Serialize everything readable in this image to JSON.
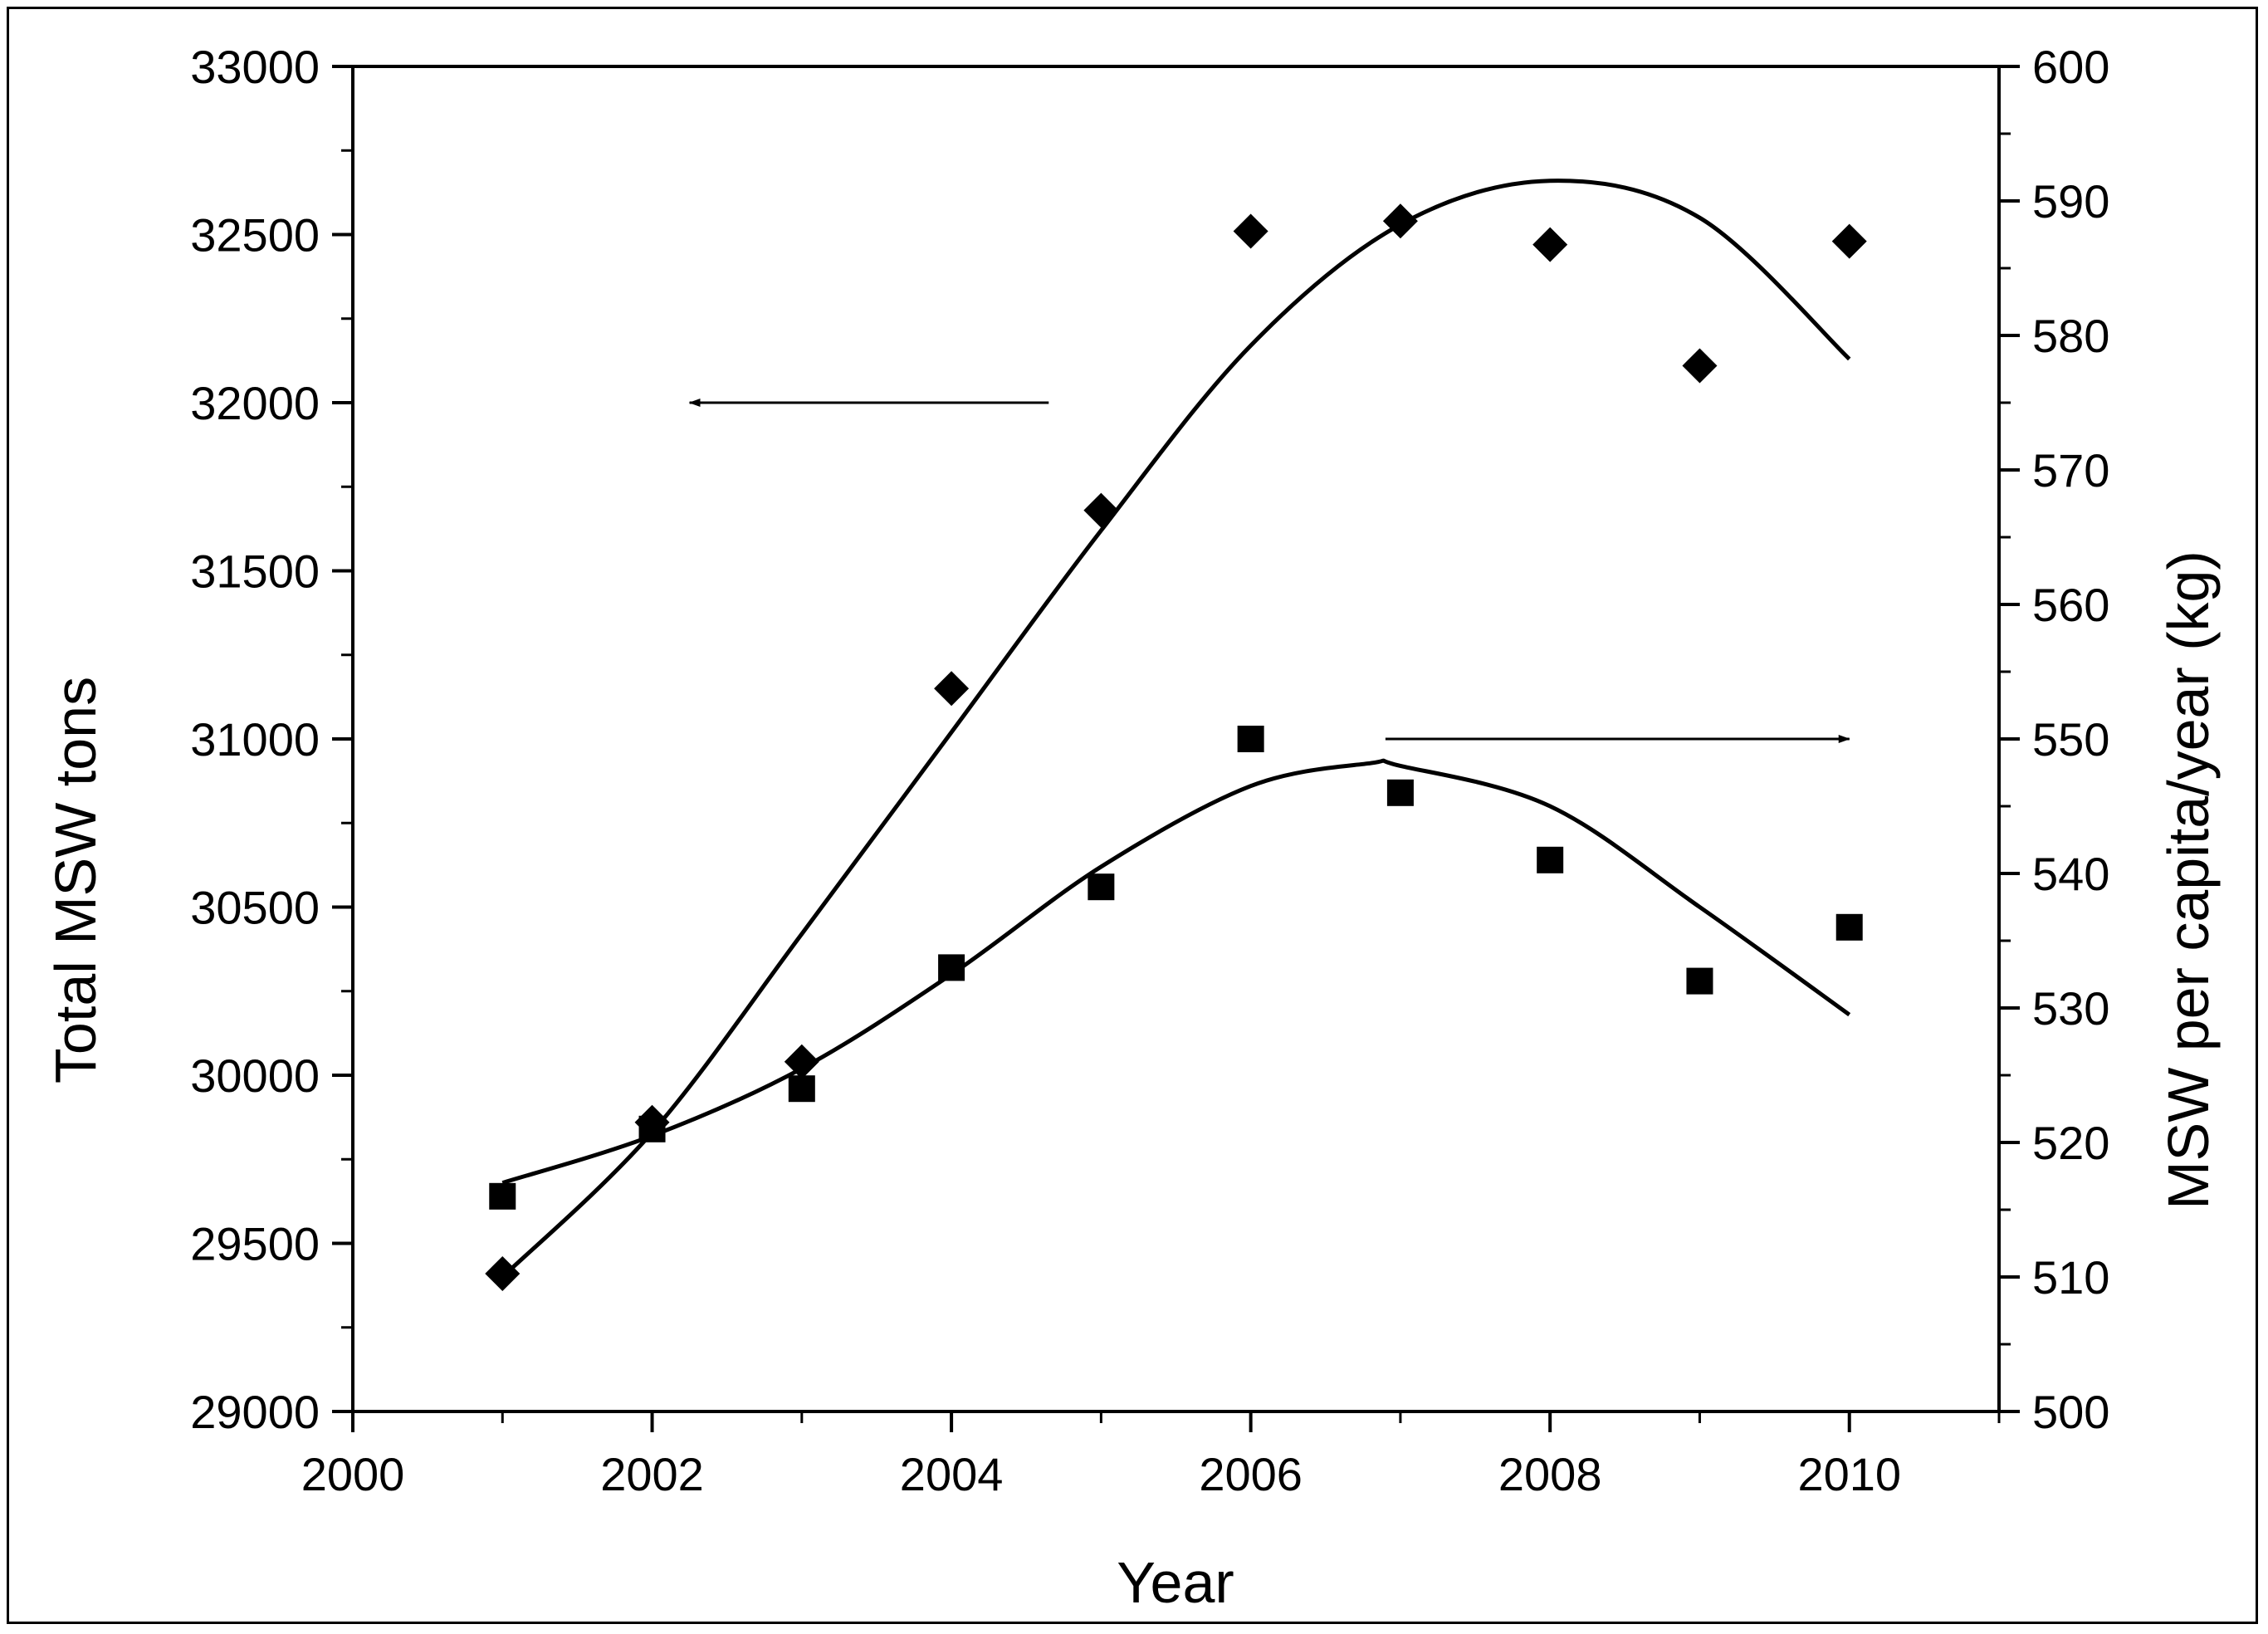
{
  "chart_data": {
    "type": "scatter",
    "x_axis": {
      "label": "Year",
      "range": [
        2000,
        2011
      ],
      "ticks": [
        2000,
        2002,
        2004,
        2006,
        2008,
        2010
      ],
      "tick_labels": [
        "2000",
        "2002",
        "2004",
        "2006",
        "2008",
        "2010"
      ]
    },
    "y_axis_left": {
      "label": "Total MSW tons",
      "range": [
        29000,
        33000
      ],
      "ticks": [
        29000,
        29500,
        30000,
        30500,
        31000,
        31500,
        32000,
        32500,
        33000
      ],
      "tick_labels": [
        "29000",
        "29500",
        "30000",
        "30500",
        "31000",
        "31500",
        "32000",
        "32500",
        "33000"
      ]
    },
    "y_axis_right": {
      "label": "MSW per capita/year (kg)",
      "range": [
        500,
        600
      ],
      "ticks": [
        500,
        510,
        520,
        530,
        540,
        550,
        560,
        570,
        580,
        590,
        600
      ],
      "tick_labels": [
        "500",
        "510",
        "520",
        "530",
        "540",
        "550",
        "560",
        "570",
        "580",
        "590",
        "600"
      ]
    },
    "series": [
      {
        "marker": "diamond",
        "axis": "left",
        "x": [
          2001,
          2002,
          2003,
          2004,
          2005,
          2006,
          2007,
          2008,
          2009,
          2010
        ],
        "y": [
          29410,
          29860,
          30040,
          31150,
          31680,
          32510,
          32540,
          32470,
          32110,
          32480
        ],
        "fit_curve": {
          "x": [
            2001,
            2002,
            2003,
            2004,
            2005,
            2006,
            2007,
            2008,
            2009,
            2010
          ],
          "y": [
            29400,
            29830,
            30420,
            31020,
            31620,
            32170,
            32530,
            32660,
            32550,
            32130
          ]
        }
      },
      {
        "marker": "square",
        "axis": "right",
        "x": [
          2001,
          2002,
          2003,
          2004,
          2005,
          2006,
          2007,
          2008,
          2009,
          2010
        ],
        "y": [
          516,
          521,
          524,
          533,
          539,
          550,
          546,
          541,
          532,
          536
        ],
        "fit_curve": {
          "x": [
            2001,
            2002,
            2003,
            2004,
            2005,
            2006,
            2006.8,
            2007,
            2008,
            2009,
            2010
          ],
          "y": [
            517,
            520.5,
            525.5,
            532.5,
            540.5,
            546.5,
            548.2,
            548,
            545,
            537.5,
            529.5
          ]
        }
      }
    ],
    "annotations": [
      {
        "type": "arrow",
        "direction": "left",
        "points_to_axis": "left"
      },
      {
        "type": "arrow",
        "direction": "right",
        "points_to_axis": "right"
      }
    ],
    "grid": false,
    "legend": "none"
  }
}
